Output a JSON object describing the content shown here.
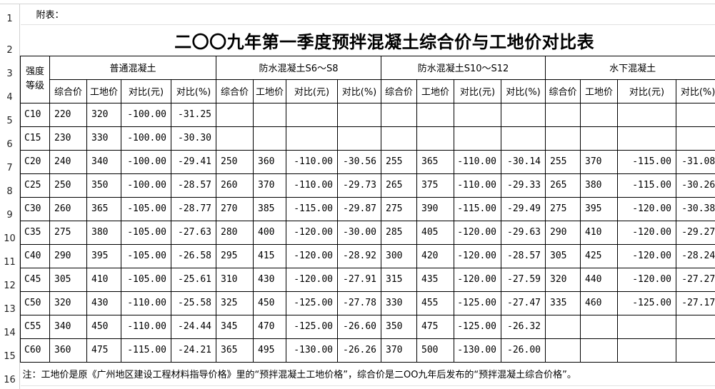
{
  "appendix_label": "附表：",
  "title": "二〇〇九年第一季度预拌混凝土综合价与工地价对比表",
  "row_numbers": [
    "1",
    "2",
    "3",
    "4",
    "5",
    "6",
    "7",
    "8",
    "9",
    "10",
    "11",
    "12",
    "13",
    "14",
    "15",
    "16"
  ],
  "grade_header": "强度等级",
  "groups": [
    "普通混凝土",
    "防水混凝土S6～S8",
    "防水混凝土S10～S12",
    "水下混凝土"
  ],
  "subheaders": [
    "综合价",
    "工地价",
    "对比(元)",
    "对比(%)"
  ],
  "rows": [
    {
      "grade": "C10",
      "cells": [
        [
          "220",
          "320",
          "-100.00",
          "-31.25"
        ],
        [
          "",
          "",
          "",
          ""
        ],
        [
          "",
          "",
          "",
          ""
        ],
        [
          "",
          "",
          "",
          ""
        ]
      ]
    },
    {
      "grade": "C15",
      "cells": [
        [
          "230",
          "330",
          "-100.00",
          "-30.30"
        ],
        [
          "",
          "",
          "",
          ""
        ],
        [
          "",
          "",
          "",
          ""
        ],
        [
          "",
          "",
          "",
          ""
        ]
      ]
    },
    {
      "grade": "C20",
      "cells": [
        [
          "240",
          "340",
          "-100.00",
          "-29.41"
        ],
        [
          "250",
          "360",
          "-110.00",
          "-30.56"
        ],
        [
          "255",
          "365",
          "-110.00",
          "-30.14"
        ],
        [
          "255",
          "370",
          "-115.00",
          "-31.08"
        ]
      ]
    },
    {
      "grade": "C25",
      "cells": [
        [
          "250",
          "350",
          "-100.00",
          "-28.57"
        ],
        [
          "260",
          "370",
          "-110.00",
          "-29.73"
        ],
        [
          "265",
          "375",
          "-110.00",
          "-29.33"
        ],
        [
          "265",
          "380",
          "-115.00",
          "-30.26"
        ]
      ]
    },
    {
      "grade": "C30",
      "cells": [
        [
          "260",
          "365",
          "-105.00",
          "-28.77"
        ],
        [
          "270",
          "385",
          "-115.00",
          "-29.87"
        ],
        [
          "275",
          "390",
          "-115.00",
          "-29.49"
        ],
        [
          "275",
          "395",
          "-120.00",
          "-30.38"
        ]
      ]
    },
    {
      "grade": "C35",
      "cells": [
        [
          "275",
          "380",
          "-105.00",
          "-27.63"
        ],
        [
          "280",
          "400",
          "-120.00",
          "-30.00"
        ],
        [
          "285",
          "405",
          "-120.00",
          "-29.63"
        ],
        [
          "290",
          "410",
          "-120.00",
          "-29.27"
        ]
      ]
    },
    {
      "grade": "C40",
      "cells": [
        [
          "290",
          "395",
          "-105.00",
          "-26.58"
        ],
        [
          "295",
          "415",
          "-120.00",
          "-28.92"
        ],
        [
          "300",
          "420",
          "-120.00",
          "-28.57"
        ],
        [
          "305",
          "425",
          "-120.00",
          "-28.24"
        ]
      ]
    },
    {
      "grade": "C45",
      "cells": [
        [
          "305",
          "410",
          "-105.00",
          "-25.61"
        ],
        [
          "310",
          "430",
          "-120.00",
          "-27.91"
        ],
        [
          "315",
          "435",
          "-120.00",
          "-27.59"
        ],
        [
          "320",
          "440",
          "-120.00",
          "-27.27"
        ]
      ]
    },
    {
      "grade": "C50",
      "cells": [
        [
          "320",
          "430",
          "-110.00",
          "-25.58"
        ],
        [
          "325",
          "450",
          "-125.00",
          "-27.78"
        ],
        [
          "330",
          "455",
          "-125.00",
          "-27.47"
        ],
        [
          "335",
          "460",
          "-125.00",
          "-27.17"
        ]
      ]
    },
    {
      "grade": "C55",
      "cells": [
        [
          "340",
          "450",
          "-110.00",
          "-24.44"
        ],
        [
          "345",
          "470",
          "-125.00",
          "-26.60"
        ],
        [
          "350",
          "475",
          "-125.00",
          "-26.32"
        ],
        [
          "",
          "",
          "",
          ""
        ]
      ]
    },
    {
      "grade": "C60",
      "cells": [
        [
          "360",
          "475",
          "-115.00",
          "-24.21"
        ],
        [
          "365",
          "495",
          "-130.00",
          "-26.26"
        ],
        [
          "370",
          "500",
          "-130.00",
          "-26.00"
        ],
        [
          "",
          "",
          "",
          ""
        ]
      ]
    }
  ],
  "note": "注：工地价是原《广州地区建设工程材料指导价格》里的“预拌混凝土工地价格”，综合价是二OO九年后发布的“预拌混凝土综合价格”。"
}
